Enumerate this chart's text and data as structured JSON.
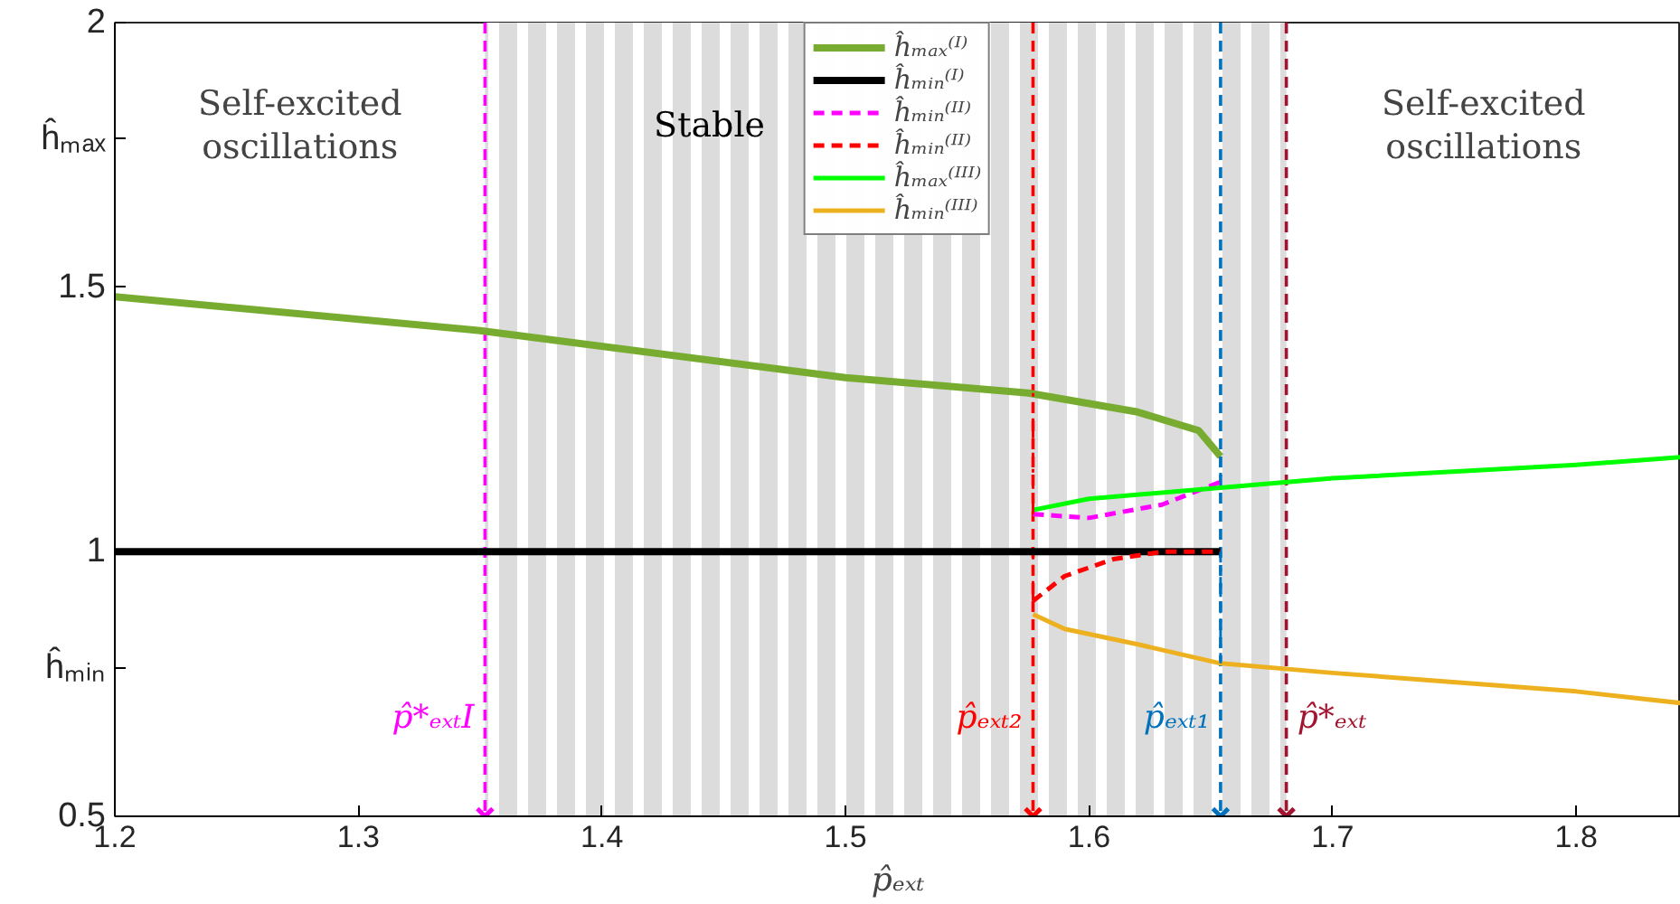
{
  "chart_data": {
    "type": "line",
    "xlabel": "p̂ₑₓₜ",
    "xlim": [
      1.2,
      1.843
    ],
    "xticks": [
      1.2,
      1.3,
      1.4,
      1.5,
      1.6,
      1.7,
      1.8
    ],
    "ylim": [
      0.5,
      2
    ],
    "yticks": [
      0.5,
      {
        "value": 0.78,
        "label": "ĥₘᵢₙ"
      },
      1,
      1.5,
      {
        "value": 1.78,
        "label": "ĥₘₐₓ"
      },
      2
    ],
    "grid": false,
    "legend": "top",
    "series": [
      {
        "name": "ĥₘₐₓ⁽ᴵ⁾",
        "color": "#77ac30",
        "x": [
          1.2,
          1.35,
          1.5,
          1.575,
          1.62,
          1.645,
          1.654
        ],
        "values": [
          1.482,
          1.418,
          1.329,
          1.3,
          1.264,
          1.229,
          1.18
        ]
      },
      {
        "name": "ĥₘᵢₙ⁽ᴵ⁾",
        "color": "#000000",
        "x": [
          1.2,
          1.654
        ],
        "values": [
          1.0,
          1.0
        ]
      },
      {
        "name": "ĥₘᵢₙ⁽ᴵᴵ⁾",
        "color": "#ff00ff",
        "line_style": "dashed",
        "x": [
          1.577,
          1.6,
          1.63,
          1.654
        ],
        "values": [
          1.071,
          1.064,
          1.089,
          1.132
        ]
      },
      {
        "name": "ĥₘᵢₙ⁽ᴵᴵ⁾",
        "color": "#ff0000",
        "line_style": "dashed",
        "x": [
          1.577,
          1.59,
          1.61,
          1.63,
          1.654
        ],
        "values": [
          0.907,
          0.954,
          0.986,
          1.0,
          1.0
        ]
      },
      {
        "name": "ĥₘₐₓ⁽ᴵᴵᴵ⁾",
        "color": "#00ff00",
        "x": [
          1.577,
          1.6,
          1.654,
          1.7,
          1.8,
          1.843
        ],
        "values": [
          1.079,
          1.1,
          1.121,
          1.139,
          1.164,
          1.179
        ]
      },
      {
        "name": "ĥₘᵢₙ⁽ᴵᴵᴵ⁾",
        "color": "#edb120",
        "x": [
          1.577,
          1.59,
          1.62,
          1.654,
          1.7,
          1.8,
          1.843
        ],
        "values": [
          0.882,
          0.854,
          0.825,
          0.789,
          0.771,
          0.736,
          0.714
        ]
      },
      {
        "color": "#ff0000",
        "line_style": "dashdot",
        "x": [
          1.577,
          1.577
        ],
        "values": [
          0.907,
          1.0
        ]
      },
      {
        "color": "#ff0000",
        "line_style": "dashdot",
        "x": [
          1.577,
          1.577
        ],
        "values": [
          1.071,
          1.3
        ]
      },
      {
        "color": "#0072bd",
        "line_style": "dashdot",
        "x": [
          1.654,
          1.654
        ],
        "values": [
          1.0,
          0.789
        ]
      },
      {
        "color": "#0072bd",
        "line_style": "dashdot",
        "x": [
          1.654,
          1.654
        ],
        "values": [
          1.18,
          1.132
        ]
      },
      {
        "type": "scatter",
        "marker": "cross",
        "colors": [
          "#ff00ff",
          "#ff0000",
          "#0072bd",
          "#a2142f"
        ],
        "x": [
          1.352,
          1.577,
          1.654,
          1.681
        ],
        "values": [
          0.5,
          0.5,
          0.5,
          0.5
        ]
      }
    ],
    "ref_lines": [
      {
        "axis": "x",
        "value": 1.352,
        "label": "p̂*ₑₓₜI",
        "color": "#ff00ff",
        "line_style": "dashed"
      },
      {
        "axis": "x",
        "value": 1.577,
        "label": "p̂ₑₓₜ₂",
        "color": "#ff0000",
        "line_style": "dashed"
      },
      {
        "axis": "x",
        "value": 1.654,
        "label": "p̂ₑₓₜ₁",
        "color": "#0072bd",
        "line_style": "dashed"
      },
      {
        "axis": "x",
        "value": 1.681,
        "label": "p̂*ₑₓₜ",
        "color": "#a2142f",
        "line_style": "dashed"
      }
    ],
    "bands": [
      {
        "axis": "x",
        "from": 1.352,
        "to": 1.681,
        "label": "Stable",
        "color": "#dcdcdc"
      }
    ],
    "annotations": [
      "Self-excited\noscillations",
      "Self-excited\noscillations"
    ]
  }
}
